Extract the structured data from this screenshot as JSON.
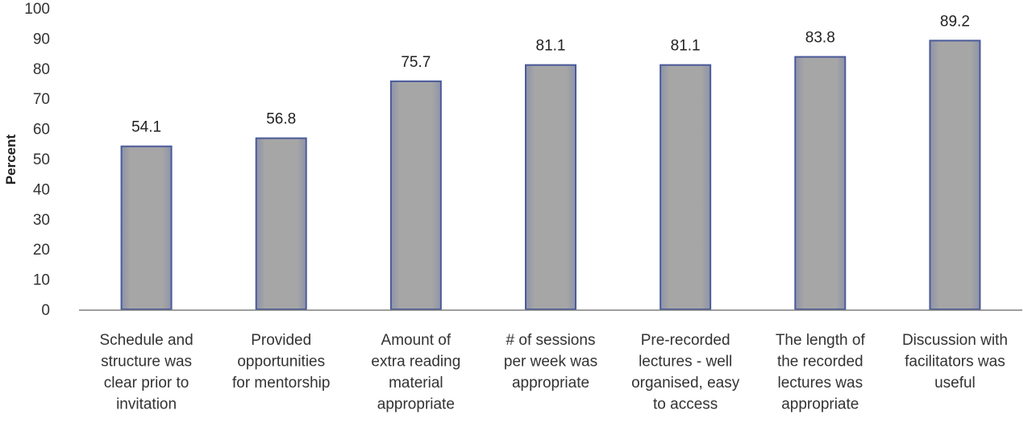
{
  "chart_data": {
    "type": "bar",
    "title": "",
    "xlabel": "",
    "ylabel": "Percent",
    "ylim": [
      0,
      100
    ],
    "ytick_step": 10,
    "grid": false,
    "categories": [
      [
        "Schedule and",
        "structure was",
        "clear prior to",
        "invitation"
      ],
      [
        "Provided",
        "opportunities",
        "for mentorship"
      ],
      [
        "Amount of",
        "extra reading",
        "material",
        "appropriate"
      ],
      [
        "# of sessions",
        "per week was",
        "appropriate"
      ],
      [
        "Pre-recorded",
        "lectures - well",
        "organised, easy",
        "to access"
      ],
      [
        "The length of",
        "the recorded",
        "lectures was",
        "appropriate"
      ],
      [
        "Discussion with",
        "facilitators was",
        "useful"
      ]
    ],
    "values": [
      54.1,
      56.8,
      75.7,
      81.1,
      81.1,
      83.8,
      89.2
    ],
    "value_labels": [
      "54.1",
      "56.8",
      "75.7",
      "81.1",
      "81.1",
      "83.8",
      "89.2"
    ],
    "colors": {
      "bar_fill": "#a6a6a6",
      "bar_edge": "#4a5a9a",
      "axis": "#7f7f7f"
    }
  }
}
